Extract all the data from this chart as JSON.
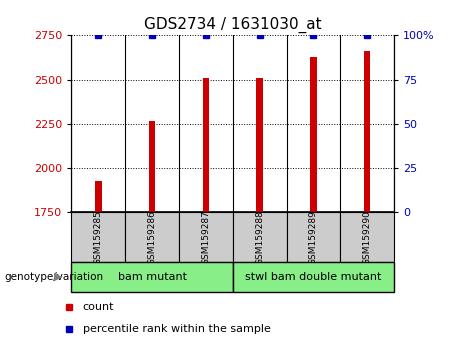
{
  "title": "GDS2734 / 1631030_at",
  "samples": [
    "GSM159285",
    "GSM159286",
    "GSM159287",
    "GSM159288",
    "GSM159289",
    "GSM159290"
  ],
  "counts": [
    1930,
    2265,
    2510,
    2510,
    2630,
    2660
  ],
  "percentile_ranks": [
    100,
    100,
    100,
    100,
    100,
    100
  ],
  "ylim_left": [
    1750,
    2750
  ],
  "ylim_right": [
    0,
    100
  ],
  "yticks_left": [
    1750,
    2000,
    2250,
    2500,
    2750
  ],
  "yticks_right": [
    0,
    25,
    50,
    75,
    100
  ],
  "ytick_right_labels": [
    "0",
    "25",
    "50",
    "75",
    "100%"
  ],
  "bar_color": "#cc0000",
  "dot_color": "#0000bb",
  "groups": [
    {
      "label": "bam mutant",
      "start": 0,
      "end": 3
    },
    {
      "label": "stwl bam double mutant",
      "start": 3,
      "end": 6
    }
  ],
  "group_bg_color": "#88ee88",
  "sample_bg_color": "#cccccc",
  "title_fontsize": 11,
  "axis_label_color_left": "#cc0000",
  "axis_label_color_right": "#0000bb",
  "legend_count_label": "count",
  "legend_pct_label": "percentile rank within the sample",
  "genotype_label": "genotype/variation"
}
